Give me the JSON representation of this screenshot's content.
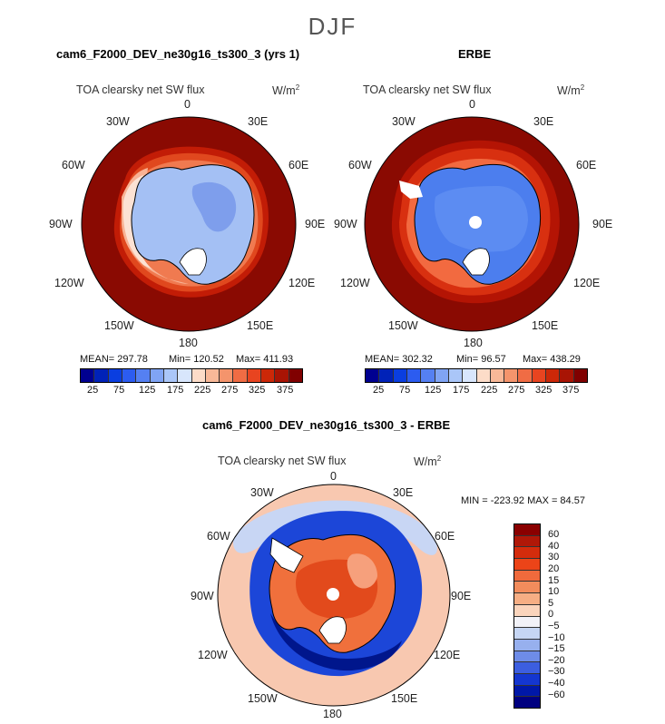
{
  "season": "DJF",
  "panel_left": {
    "title": "cam6_F2000_DEV_ne30g16_ts300_3 (yrs 1)",
    "variable": "TOA clearsky net SW flux",
    "units": "W/m",
    "units_exp": "2",
    "mean_label": "MEAN= 297.78",
    "min_label": "Min= 120.52",
    "max_label": "Max= 411.93"
  },
  "panel_right": {
    "title": "ERBE",
    "variable": "TOA clearsky net SW flux",
    "units": "W/m",
    "units_exp": "2",
    "mean_label": "MEAN= 302.32",
    "min_label": "Min= 96.57",
    "max_label": "Max= 438.29"
  },
  "panel_diff": {
    "title": "cam6_F2000_DEV_ne30g16_ts300_3 - ERBE",
    "variable": "TOA clearsky net SW flux",
    "units": "W/m",
    "units_exp": "2",
    "minmax_label": "MIN = -223.92 MAX =  84.57"
  },
  "lon_labels": {
    "top": "0",
    "tr": "30E",
    "r1": "60E",
    "r2": "90E",
    "r3": "120E",
    "br": "150E",
    "bottom": "180",
    "bl": "150W",
    "l3": "120W",
    "l2": "90W",
    "l1": "60W",
    "tl": "30W"
  },
  "colorbar_abs_labels": [
    "25",
    "75",
    "125",
    "175",
    "225",
    "275",
    "325",
    "375"
  ],
  "colorbar_abs_colors": [
    "#000090",
    "#0022b8",
    "#0a3ee0",
    "#2c5cf0",
    "#5580f2",
    "#80a4f4",
    "#aac6f8",
    "#d8e6fc",
    "#fcdcc8",
    "#f8b898",
    "#f4946c",
    "#f06c44",
    "#e84420",
    "#cc2808",
    "#a81404",
    "#800000"
  ],
  "colorbar_diff_labels": [
    "60",
    "40",
    "30",
    "20",
    "15",
    "10",
    "5",
    "0",
    "−5",
    "−10",
    "−15",
    "−20",
    "−30",
    "−40",
    "−60"
  ],
  "colorbar_diff_colors": [
    "#8a0000",
    "#b01808",
    "#d42c0c",
    "#ec4418",
    "#f06a3c",
    "#f28c5c",
    "#f6ae84",
    "#fad4bc",
    "#f2f2f8",
    "#c6d6f4",
    "#97b0ee",
    "#6e8ce8",
    "#3c5ee0",
    "#1436d0",
    "#0018a8",
    "#000080"
  ],
  "chart_data": [
    {
      "type": "heatmap",
      "title": "cam6_F2000_DEV_ne30g16_ts300_3 (yrs 1)",
      "variable": "TOA clearsky net SW flux",
      "units": "W/m2",
      "projection": "south polar stereographic",
      "season": "DJF",
      "mean": 297.78,
      "min": 120.52,
      "max": 411.93,
      "levels": [
        25,
        50,
        75,
        100,
        125,
        150,
        175,
        200,
        225,
        250,
        275,
        300,
        325,
        350,
        375
      ],
      "tick_labels": [
        "25",
        "75",
        "125",
        "175",
        "225",
        "275",
        "325",
        "375"
      ],
      "ocean_value_approx": 390,
      "antarctica_value_approx": 150
    },
    {
      "type": "heatmap",
      "title": "ERBE",
      "variable": "TOA clearsky net SW flux",
      "units": "W/m2",
      "projection": "south polar stereographic",
      "season": "DJF",
      "mean": 302.32,
      "min": 96.57,
      "max": 438.29,
      "levels": [
        25,
        50,
        75,
        100,
        125,
        150,
        175,
        200,
        225,
        250,
        275,
        300,
        325,
        350,
        375
      ],
      "tick_labels": [
        "25",
        "75",
        "125",
        "175",
        "225",
        "275",
        "325",
        "375"
      ],
      "ocean_value_approx": 400,
      "antarctica_value_approx": 130
    },
    {
      "type": "heatmap",
      "title": "cam6_F2000_DEV_ne30g16_ts300_3 - ERBE",
      "variable": "TOA clearsky net SW flux",
      "units": "W/m2",
      "projection": "south polar stereographic",
      "season": "DJF",
      "min": -223.92,
      "max": 84.57,
      "levels": [
        -60,
        -40,
        -30,
        -20,
        -15,
        -10,
        -5,
        0,
        5,
        10,
        15,
        20,
        30,
        40,
        60
      ],
      "tick_labels": [
        "60",
        "40",
        "30",
        "20",
        "15",
        "10",
        "5",
        "0",
        "-5",
        "-10",
        "-15",
        "-20",
        "-30",
        "-40",
        "-60"
      ]
    }
  ]
}
